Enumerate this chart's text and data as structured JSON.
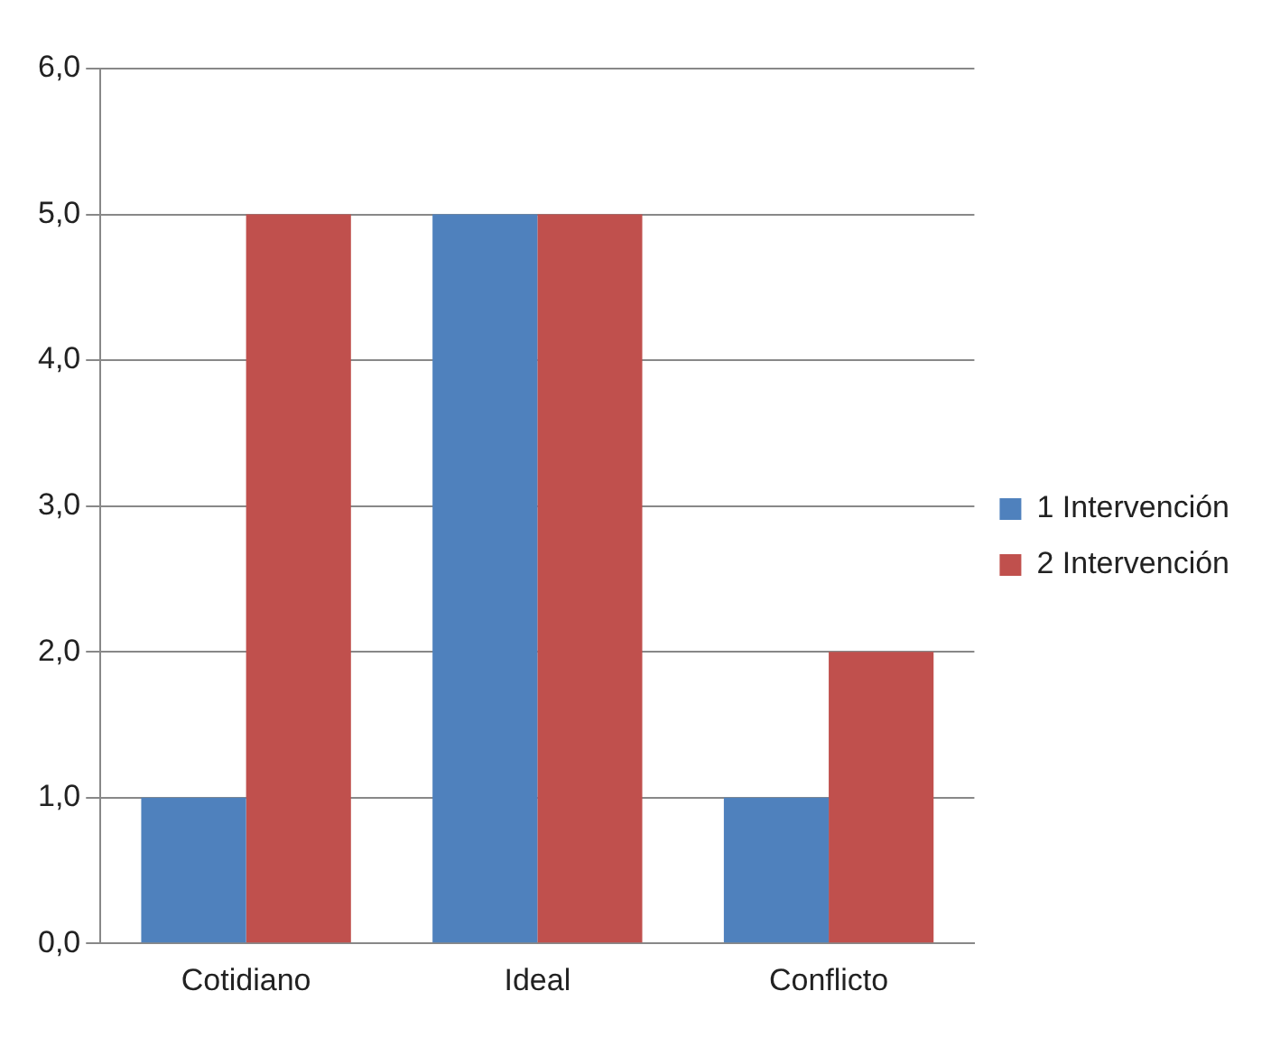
{
  "chart_data": {
    "type": "bar",
    "categories": [
      "Cotidiano",
      "Ideal",
      "Conflicto"
    ],
    "series": [
      {
        "name": "1 Intervención",
        "color": "#4f81bd",
        "values": [
          1,
          5,
          1
        ]
      },
      {
        "name": "2 Intervención",
        "color": "#c0504d",
        "values": [
          5,
          5,
          2
        ]
      }
    ],
    "ylim": [
      0,
      6
    ],
    "yticks": [
      {
        "value": 0,
        "label": "0,0"
      },
      {
        "value": 1,
        "label": "1,0"
      },
      {
        "value": 2,
        "label": "2,0"
      },
      {
        "value": 3,
        "label": "3,0"
      },
      {
        "value": 4,
        "label": "4,0"
      },
      {
        "value": 5,
        "label": "5,0"
      },
      {
        "value": 6,
        "label": "6,0"
      }
    ],
    "grid": "y",
    "legend": "right"
  }
}
